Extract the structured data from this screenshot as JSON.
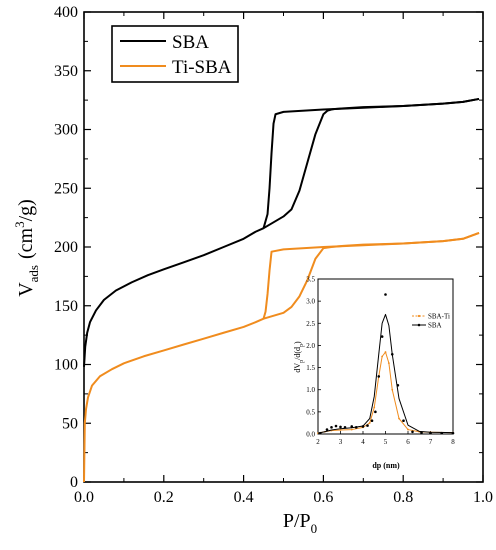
{
  "chart_data": [
    {
      "type": "line",
      "title": "",
      "xlabel": "P/P",
      "xlabel_sub": "0",
      "ylabel": "V",
      "ylabel_sub": "ads",
      "ylabel_unit_pre": "(cm",
      "ylabel_unit_sup": "3",
      "ylabel_unit_post": "/g)",
      "xlim": [
        0,
        1.0
      ],
      "ylim": [
        0,
        400
      ],
      "xticks": [
        0.0,
        0.2,
        0.4,
        0.6,
        0.8,
        1.0
      ],
      "xtick_labels": [
        "0.0",
        "0.2",
        "0.4",
        "0.6",
        "0.8",
        "1.0"
      ],
      "yticks": [
        0,
        50,
        100,
        150,
        200,
        250,
        300,
        350,
        400
      ],
      "ytick_labels": [
        "0",
        "50",
        "100",
        "150",
        "200",
        "250",
        "300",
        "350",
        "400"
      ],
      "grid": false,
      "legend_position": "top-left",
      "series": [
        {
          "name": "SBA",
          "color": "#000000",
          "adsorption": {
            "x": [
              0.0,
              0.003,
              0.008,
              0.015,
              0.03,
              0.05,
              0.08,
              0.12,
              0.16,
              0.2,
              0.25,
              0.3,
              0.35,
              0.4,
              0.43,
              0.45,
              0.5,
              0.52,
              0.54,
              0.56,
              0.58,
              0.6,
              0.61,
              0.62,
              0.63,
              0.65,
              0.7,
              0.8,
              0.9,
              0.95,
              0.99
            ],
            "y": [
              98,
              115,
              127,
              136,
              146,
              155,
              163,
              170,
              176,
              181,
              187,
              193,
              200,
              207,
              213,
              216,
              226,
              232,
              248,
              272,
              296,
              313,
              316,
              317,
              317.5,
              318,
              319,
              320,
              322,
              323.5,
              326
            ]
          },
          "desorption": {
            "x": [
              0.99,
              0.95,
              0.9,
              0.8,
              0.7,
              0.6,
              0.5,
              0.48,
              0.475,
              0.47,
              0.465,
              0.46,
              0.45
            ],
            "y": [
              326,
              323.5,
              322,
              320,
              318.5,
              317,
              315,
              313,
              305,
              280,
              250,
              228,
              216
            ]
          }
        },
        {
          "name": "Ti-SBA",
          "color": "#f08c1e",
          "adsorption": {
            "x": [
              0.0,
              0.002,
              0.005,
              0.01,
              0.02,
              0.04,
              0.07,
              0.1,
              0.15,
              0.2,
              0.25,
              0.3,
              0.35,
              0.4,
              0.43,
              0.45,
              0.5,
              0.52,
              0.54,
              0.56,
              0.58,
              0.6,
              0.62,
              0.65,
              0.7,
              0.8,
              0.9,
              0.95,
              0.99
            ],
            "y": [
              0,
              50,
              62,
              72,
              82,
              90,
              96,
              101,
              107,
              112,
              117,
              122,
              127,
              132,
              136,
              139,
              144,
              149,
              158,
              172,
              190,
              199,
              200,
              201,
              202,
              203,
              205,
              207,
              212
            ]
          },
          "desorption": {
            "x": [
              0.99,
              0.95,
              0.9,
              0.8,
              0.7,
              0.6,
              0.5,
              0.47,
              0.465,
              0.46,
              0.455,
              0.45
            ],
            "y": [
              212,
              207,
              205,
              203,
              201.5,
              200,
              198,
              196,
              180,
              160,
              145,
              139
            ]
          }
        }
      ]
    },
    {
      "type": "line",
      "title": "",
      "xlabel": "dp (nm)",
      "ylabel": "dV",
      "ylabel_sub": "p",
      "ylabel_post": "/d(d",
      "ylabel_sub2": "p",
      "ylabel_end": ")",
      "xlim": [
        2,
        8
      ],
      "ylim": [
        0,
        3.5
      ],
      "xtick_labels": [
        "2",
        "3",
        "4",
        "5",
        "6",
        "7",
        "8"
      ],
      "ytick_labels": [
        "0.0",
        "0.5",
        "1.0",
        "1.5",
        "2.0",
        "2.5",
        "3.0",
        "3.5"
      ],
      "legend_position": "top-left",
      "series": [
        {
          "name": "SBA-Ti",
          "color": "#f08c1e",
          "x": [
            2.0,
            2.3,
            2.6,
            3.0,
            3.5,
            4.0,
            4.3,
            4.5,
            4.7,
            4.85,
            5.0,
            5.15,
            5.3,
            5.6,
            6.0,
            6.5,
            7.0,
            8.0
          ],
          "y": [
            0.02,
            0.05,
            0.08,
            0.09,
            0.1,
            0.15,
            0.25,
            0.6,
            1.3,
            1.75,
            1.85,
            1.6,
            1.0,
            0.35,
            0.1,
            0.05,
            0.04,
            0.03
          ]
        },
        {
          "name": "SBA",
          "color": "#000000",
          "x": [
            2.0,
            2.3,
            2.6,
            3.0,
            3.5,
            4.0,
            4.3,
            4.5,
            4.7,
            4.85,
            5.0,
            5.15,
            5.3,
            5.6,
            6.0,
            6.5,
            7.0,
            8.0
          ],
          "y": [
            0.02,
            0.05,
            0.09,
            0.12,
            0.14,
            0.18,
            0.35,
            0.85,
            1.8,
            2.5,
            2.7,
            2.45,
            1.8,
            0.8,
            0.2,
            0.06,
            0.04,
            0.03
          ],
          "points_x": [
            2.1,
            2.4,
            2.6,
            2.8,
            3.0,
            3.2,
            3.5,
            3.7,
            4.0,
            4.2,
            4.4,
            4.55,
            4.7,
            4.85,
            5.0,
            5.3,
            5.55,
            5.8,
            6.2,
            6.6,
            7.0,
            7.5,
            8.0
          ],
          "points_y": [
            0.02,
            0.1,
            0.15,
            0.18,
            0.16,
            0.15,
            0.17,
            0.15,
            0.17,
            0.19,
            0.3,
            0.5,
            1.3,
            2.2,
            3.15,
            1.8,
            1.1,
            0.3,
            0.05,
            0.03,
            0.02,
            0.02,
            0.02
          ]
        }
      ]
    }
  ]
}
